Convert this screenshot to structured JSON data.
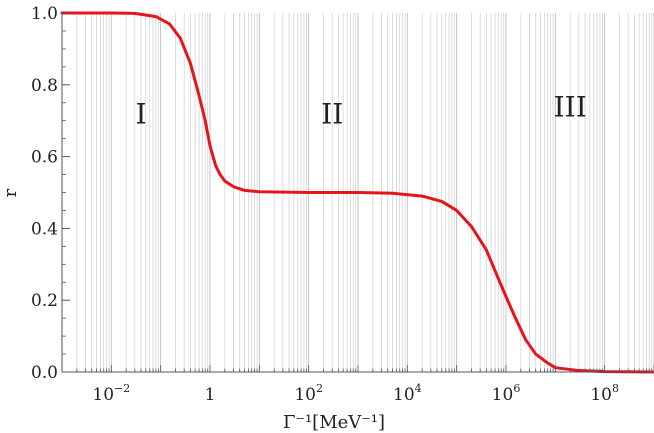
{
  "chart_data": {
    "type": "line",
    "xlabel": "Γ⁻¹[MeV⁻¹]",
    "ylabel": "r",
    "x_scale": "log",
    "xlim": [
      0.001,
      1000000000
    ],
    "ylim": [
      0.0,
      1.0
    ],
    "grid": "vertical log grid lines",
    "y_ticks": [
      "0.0",
      "0.2",
      "0.4",
      "0.6",
      "0.8",
      "1.0"
    ],
    "x_ticks": [
      {
        "value": 0.01,
        "base": "10",
        "exp": "−2"
      },
      {
        "value": 1,
        "base": "1",
        "exp": ""
      },
      {
        "value": 100,
        "base": "10",
        "exp": "2"
      },
      {
        "value": 10000,
        "base": "10",
        "exp": "4"
      },
      {
        "value": 1000000,
        "base": "10",
        "exp": "6"
      },
      {
        "value": 100000000,
        "base": "10",
        "exp": "8"
      }
    ],
    "annotations": [
      {
        "text": "I",
        "x": 0.04,
        "y": 0.72
      },
      {
        "text": "II",
        "x": 300,
        "y": 0.72
      },
      {
        "text": "III",
        "x": 20000000,
        "y": 0.74
      }
    ],
    "series": [
      {
        "color": "#e8141c",
        "points": [
          [
            0.001,
            1.0
          ],
          [
            0.01,
            1.0
          ],
          [
            0.03,
            0.999
          ],
          [
            0.08,
            0.99
          ],
          [
            0.15,
            0.97
          ],
          [
            0.25,
            0.93
          ],
          [
            0.4,
            0.86
          ],
          [
            0.6,
            0.77
          ],
          [
            0.8,
            0.7
          ],
          [
            1.0,
            0.63
          ],
          [
            1.3,
            0.575
          ],
          [
            1.6,
            0.55
          ],
          [
            2.0,
            0.532
          ],
          [
            3.0,
            0.516
          ],
          [
            5.0,
            0.506
          ],
          [
            10,
            0.502
          ],
          [
            100,
            0.5
          ],
          [
            1000,
            0.5
          ],
          [
            5000,
            0.498
          ],
          [
            20000,
            0.49
          ],
          [
            50000,
            0.475
          ],
          [
            100000,
            0.45
          ],
          [
            200000,
            0.405
          ],
          [
            400000,
            0.34
          ],
          [
            700000,
            0.26
          ],
          [
            1000000,
            0.21
          ],
          [
            1500000,
            0.155
          ],
          [
            2500000,
            0.09
          ],
          [
            4000000,
            0.05
          ],
          [
            7000000,
            0.025
          ],
          [
            10000000,
            0.012
          ],
          [
            30000000,
            0.004
          ],
          [
            100000000,
            0.001
          ],
          [
            1000000000,
            0.0
          ]
        ]
      }
    ]
  }
}
